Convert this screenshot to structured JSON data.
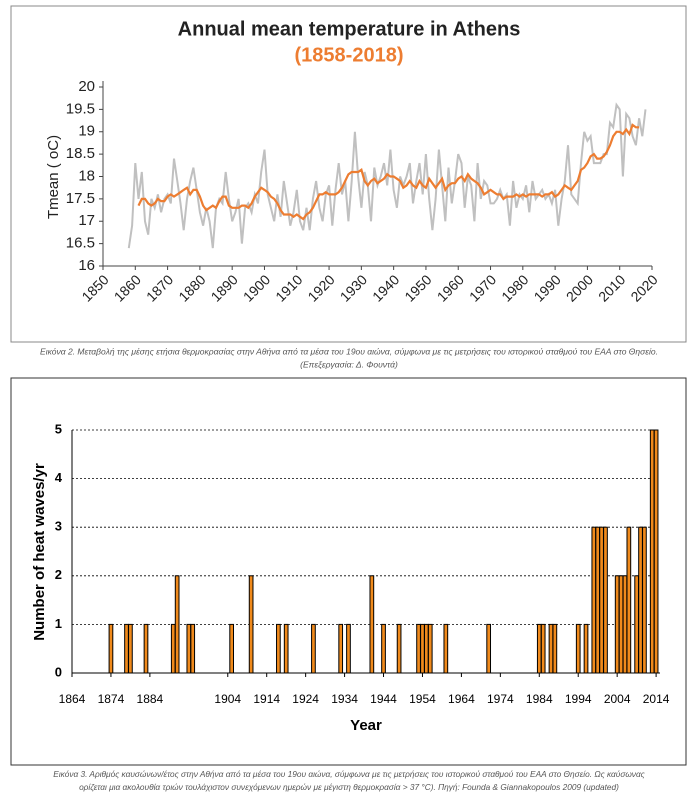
{
  "chart_data": [
    {
      "type": "line",
      "title": "Annual mean temperature in Athens",
      "subtitle": "(1858-2018)",
      "ylabel": "Tmean ( oC)",
      "caption": [
        "Εικόνα 2. Μεταβολή της μέσης ετήσια θερμοκρασίας στην Αθήνα από τα μέσα του 19ου αιώνα, σύμφωνα με τις μετρήσεις του ιστορικού σταθμού του ΕΑΑ στο Θησείο.",
        "(Επεξεργασία: Δ. Φουντά)"
      ],
      "xlim": [
        1850,
        2020
      ],
      "xticks": [
        1850,
        1860,
        1870,
        1880,
        1890,
        1900,
        1910,
        1920,
        1930,
        1940,
        1950,
        1960,
        1970,
        1980,
        1990,
        2000,
        2010,
        2020
      ],
      "ylim": [
        16,
        20
      ],
      "yticks": [
        16,
        16.5,
        17,
        17.5,
        18,
        18.5,
        19,
        19.5,
        20
      ],
      "x": [
        1858,
        1859,
        1860,
        1861,
        1862,
        1863,
        1864,
        1865,
        1866,
        1867,
        1868,
        1869,
        1870,
        1871,
        1872,
        1873,
        1874,
        1875,
        1876,
        1877,
        1878,
        1879,
        1880,
        1881,
        1882,
        1883,
        1884,
        1885,
        1886,
        1887,
        1888,
        1889,
        1890,
        1891,
        1892,
        1893,
        1894,
        1895,
        1896,
        1897,
        1898,
        1899,
        1900,
        1901,
        1902,
        1903,
        1904,
        1905,
        1906,
        1907,
        1908,
        1909,
        1910,
        1911,
        1912,
        1913,
        1914,
        1915,
        1916,
        1917,
        1918,
        1919,
        1920,
        1921,
        1922,
        1923,
        1924,
        1925,
        1926,
        1927,
        1928,
        1929,
        1930,
        1931,
        1932,
        1933,
        1934,
        1935,
        1936,
        1937,
        1938,
        1939,
        1940,
        1941,
        1942,
        1943,
        1944,
        1945,
        1946,
        1947,
        1948,
        1949,
        1950,
        1951,
        1952,
        1953,
        1954,
        1955,
        1956,
        1957,
        1958,
        1959,
        1960,
        1961,
        1962,
        1963,
        1964,
        1965,
        1966,
        1967,
        1968,
        1969,
        1970,
        1971,
        1972,
        1973,
        1974,
        1975,
        1976,
        1977,
        1978,
        1979,
        1980,
        1981,
        1982,
        1983,
        1984,
        1985,
        1986,
        1987,
        1988,
        1989,
        1990,
        1991,
        1992,
        1993,
        1994,
        1995,
        1996,
        1997,
        1998,
        1999,
        2000,
        2001,
        2002,
        2003,
        2004,
        2005,
        2006,
        2007,
        2008,
        2009,
        2010,
        2011,
        2012,
        2013,
        2014,
        2015,
        2016,
        2017,
        2018
      ],
      "series": [
        {
          "color": "#c0c0c0",
          "values": [
            16.4,
            16.9,
            18.3,
            17.5,
            18.1,
            17.0,
            16.7,
            17.5,
            17.3,
            17.6,
            17.2,
            17.5,
            17.6,
            17.4,
            18.4,
            17.9,
            17.4,
            16.8,
            17.5,
            17.9,
            18.2,
            17.7,
            17.2,
            16.9,
            17.3,
            17.0,
            16.4,
            17.3,
            17.5,
            17.4,
            18.1,
            17.5,
            17.0,
            17.2,
            17.5,
            16.5,
            17.3,
            17.4,
            17.2,
            17.6,
            17.4,
            18.1,
            18.6,
            17.6,
            17.3,
            17.0,
            17.6,
            17.1,
            17.9,
            17.4,
            16.9,
            17.2,
            17.7,
            17.0,
            16.8,
            17.3,
            16.8,
            17.5,
            17.9,
            17.3,
            17.0,
            17.6,
            17.8,
            16.9,
            17.7,
            18.3,
            17.6,
            17.9,
            17.0,
            17.9,
            19.0,
            18.0,
            17.3,
            18.1,
            17.8,
            17.0,
            18.2,
            17.8,
            18.0,
            18.3,
            17.8,
            18.6,
            17.7,
            17.3,
            18.0,
            17.8,
            18.0,
            18.3,
            17.4,
            17.9,
            18.3,
            17.6,
            18.5,
            17.5,
            16.8,
            17.5,
            18.6,
            17.8,
            17.0,
            18.2,
            17.4,
            17.9,
            18.5,
            18.3,
            17.3,
            18.0,
            17.8,
            17.0,
            18.3,
            17.5,
            17.9,
            17.8,
            17.4,
            17.4,
            17.5,
            17.7,
            17.5,
            17.6,
            16.9,
            17.9,
            17.3,
            17.6,
            17.5,
            17.8,
            17.2,
            17.9,
            17.5,
            17.6,
            17.7,
            17.5,
            17.6,
            17.4,
            17.7,
            16.9,
            17.5,
            17.9,
            18.7,
            17.6,
            17.5,
            17.4,
            18.3,
            19.0,
            18.8,
            18.9,
            18.3,
            18.3,
            18.3,
            18.5,
            18.5,
            19.2,
            19.1,
            19.6,
            19.5,
            18.0,
            19.4,
            19.3,
            18.9,
            18.7,
            19.3,
            18.9,
            19.5
          ]
        },
        {
          "color": "#ed7d31",
          "values": [
            null,
            null,
            null,
            17.35,
            17.5,
            17.5,
            17.4,
            17.35,
            17.4,
            17.5,
            17.45,
            17.45,
            17.55,
            17.6,
            17.55,
            17.6,
            17.65,
            17.7,
            17.75,
            17.6,
            17.7,
            17.7,
            17.55,
            17.35,
            17.25,
            17.3,
            17.35,
            17.3,
            17.45,
            17.55,
            17.55,
            17.35,
            17.3,
            17.3,
            17.3,
            17.35,
            17.35,
            17.3,
            17.4,
            17.55,
            17.65,
            17.75,
            17.7,
            17.65,
            17.55,
            17.5,
            17.4,
            17.25,
            17.15,
            17.15,
            17.15,
            17.1,
            17.15,
            17.1,
            17.05,
            17.15,
            17.2,
            17.3,
            17.45,
            17.6,
            17.6,
            17.65,
            17.6,
            17.6,
            17.6,
            17.65,
            17.75,
            17.9,
            18.05,
            18.1,
            18.1,
            18.1,
            18.15,
            17.9,
            17.8,
            17.9,
            17.95,
            17.85,
            17.9,
            17.95,
            18.05,
            18.0,
            18.0,
            17.95,
            17.9,
            17.75,
            17.8,
            17.9,
            17.8,
            17.75,
            17.9,
            17.8,
            17.75,
            17.95,
            17.85,
            17.75,
            17.85,
            17.95,
            17.7,
            17.8,
            17.85,
            17.85,
            17.95,
            18.0,
            17.9,
            18.05,
            17.95,
            17.9,
            17.85,
            17.75,
            17.6,
            17.65,
            17.7,
            17.65,
            17.6,
            17.6,
            17.5,
            17.55,
            17.55,
            17.55,
            17.6,
            17.55,
            17.6,
            17.55,
            17.6,
            17.6,
            17.6,
            17.6,
            17.55,
            17.6,
            17.6,
            17.65,
            17.55,
            17.6,
            17.7,
            17.8,
            17.75,
            17.7,
            17.8,
            17.9,
            18.15,
            18.2,
            18.3,
            18.45,
            18.5,
            18.4,
            18.4,
            18.45,
            18.55,
            18.7,
            18.9,
            19.0,
            19.0,
            18.95,
            19.05,
            18.95,
            19.15,
            19.1,
            19.1,
            null,
            null
          ]
        }
      ]
    },
    {
      "type": "bar",
      "xlabel": "Year",
      "ylabel": "Number of heat waves/yr",
      "caption": [
        "Εικόνα 3. Αριθμός καυσώνων/έτος στην Αθήνα από τα μέσα του 19ου αιώνα, σύμφωνα με τις μετρήσεις του ιστορικού σταθμού του ΕΑΑ στο Θησείο. Ως καύσωνας",
        "ορίζεται μια ακολουθία τριών τουλάχιστον συνεχόμενων ημερών με μέγιστη θερμοκρασία > 37 °C).  Πηγή: Founda & Giannakopoulos 2009 (updated)"
      ],
      "xlim": [
        1864,
        2015
      ],
      "xticks": [
        1864,
        1874,
        1884,
        1904,
        1914,
        1924,
        1934,
        1944,
        1954,
        1964,
        1974,
        1984,
        1994,
        2004,
        2014
      ],
      "ylim": [
        0,
        5
      ],
      "yticks": [
        0,
        1,
        2,
        3,
        4,
        5
      ],
      "grid": true,
      "color": "#f08a1c",
      "x": [
        1874,
        1878,
        1879,
        1883,
        1890,
        1891,
        1894,
        1895,
        1905,
        1910,
        1917,
        1919,
        1926,
        1933,
        1935,
        1941,
        1944,
        1948,
        1953,
        1954,
        1955,
        1956,
        1960,
        1971,
        1984,
        1985,
        1987,
        1988,
        1994,
        1996,
        1998,
        1999,
        2000,
        2001,
        2004,
        2005,
        2006,
        2007,
        2009,
        2010,
        2011,
        2013,
        2014
      ],
      "values": [
        1,
        1,
        1,
        1,
        1,
        2,
        1,
        1,
        1,
        2,
        1,
        1,
        1,
        1,
        1,
        2,
        1,
        1,
        1,
        1,
        1,
        1,
        1,
        1,
        1,
        1,
        1,
        1,
        1,
        1,
        3,
        3,
        3,
        3,
        2,
        2,
        2,
        3,
        2,
        3,
        3,
        5,
        5
      ]
    }
  ]
}
